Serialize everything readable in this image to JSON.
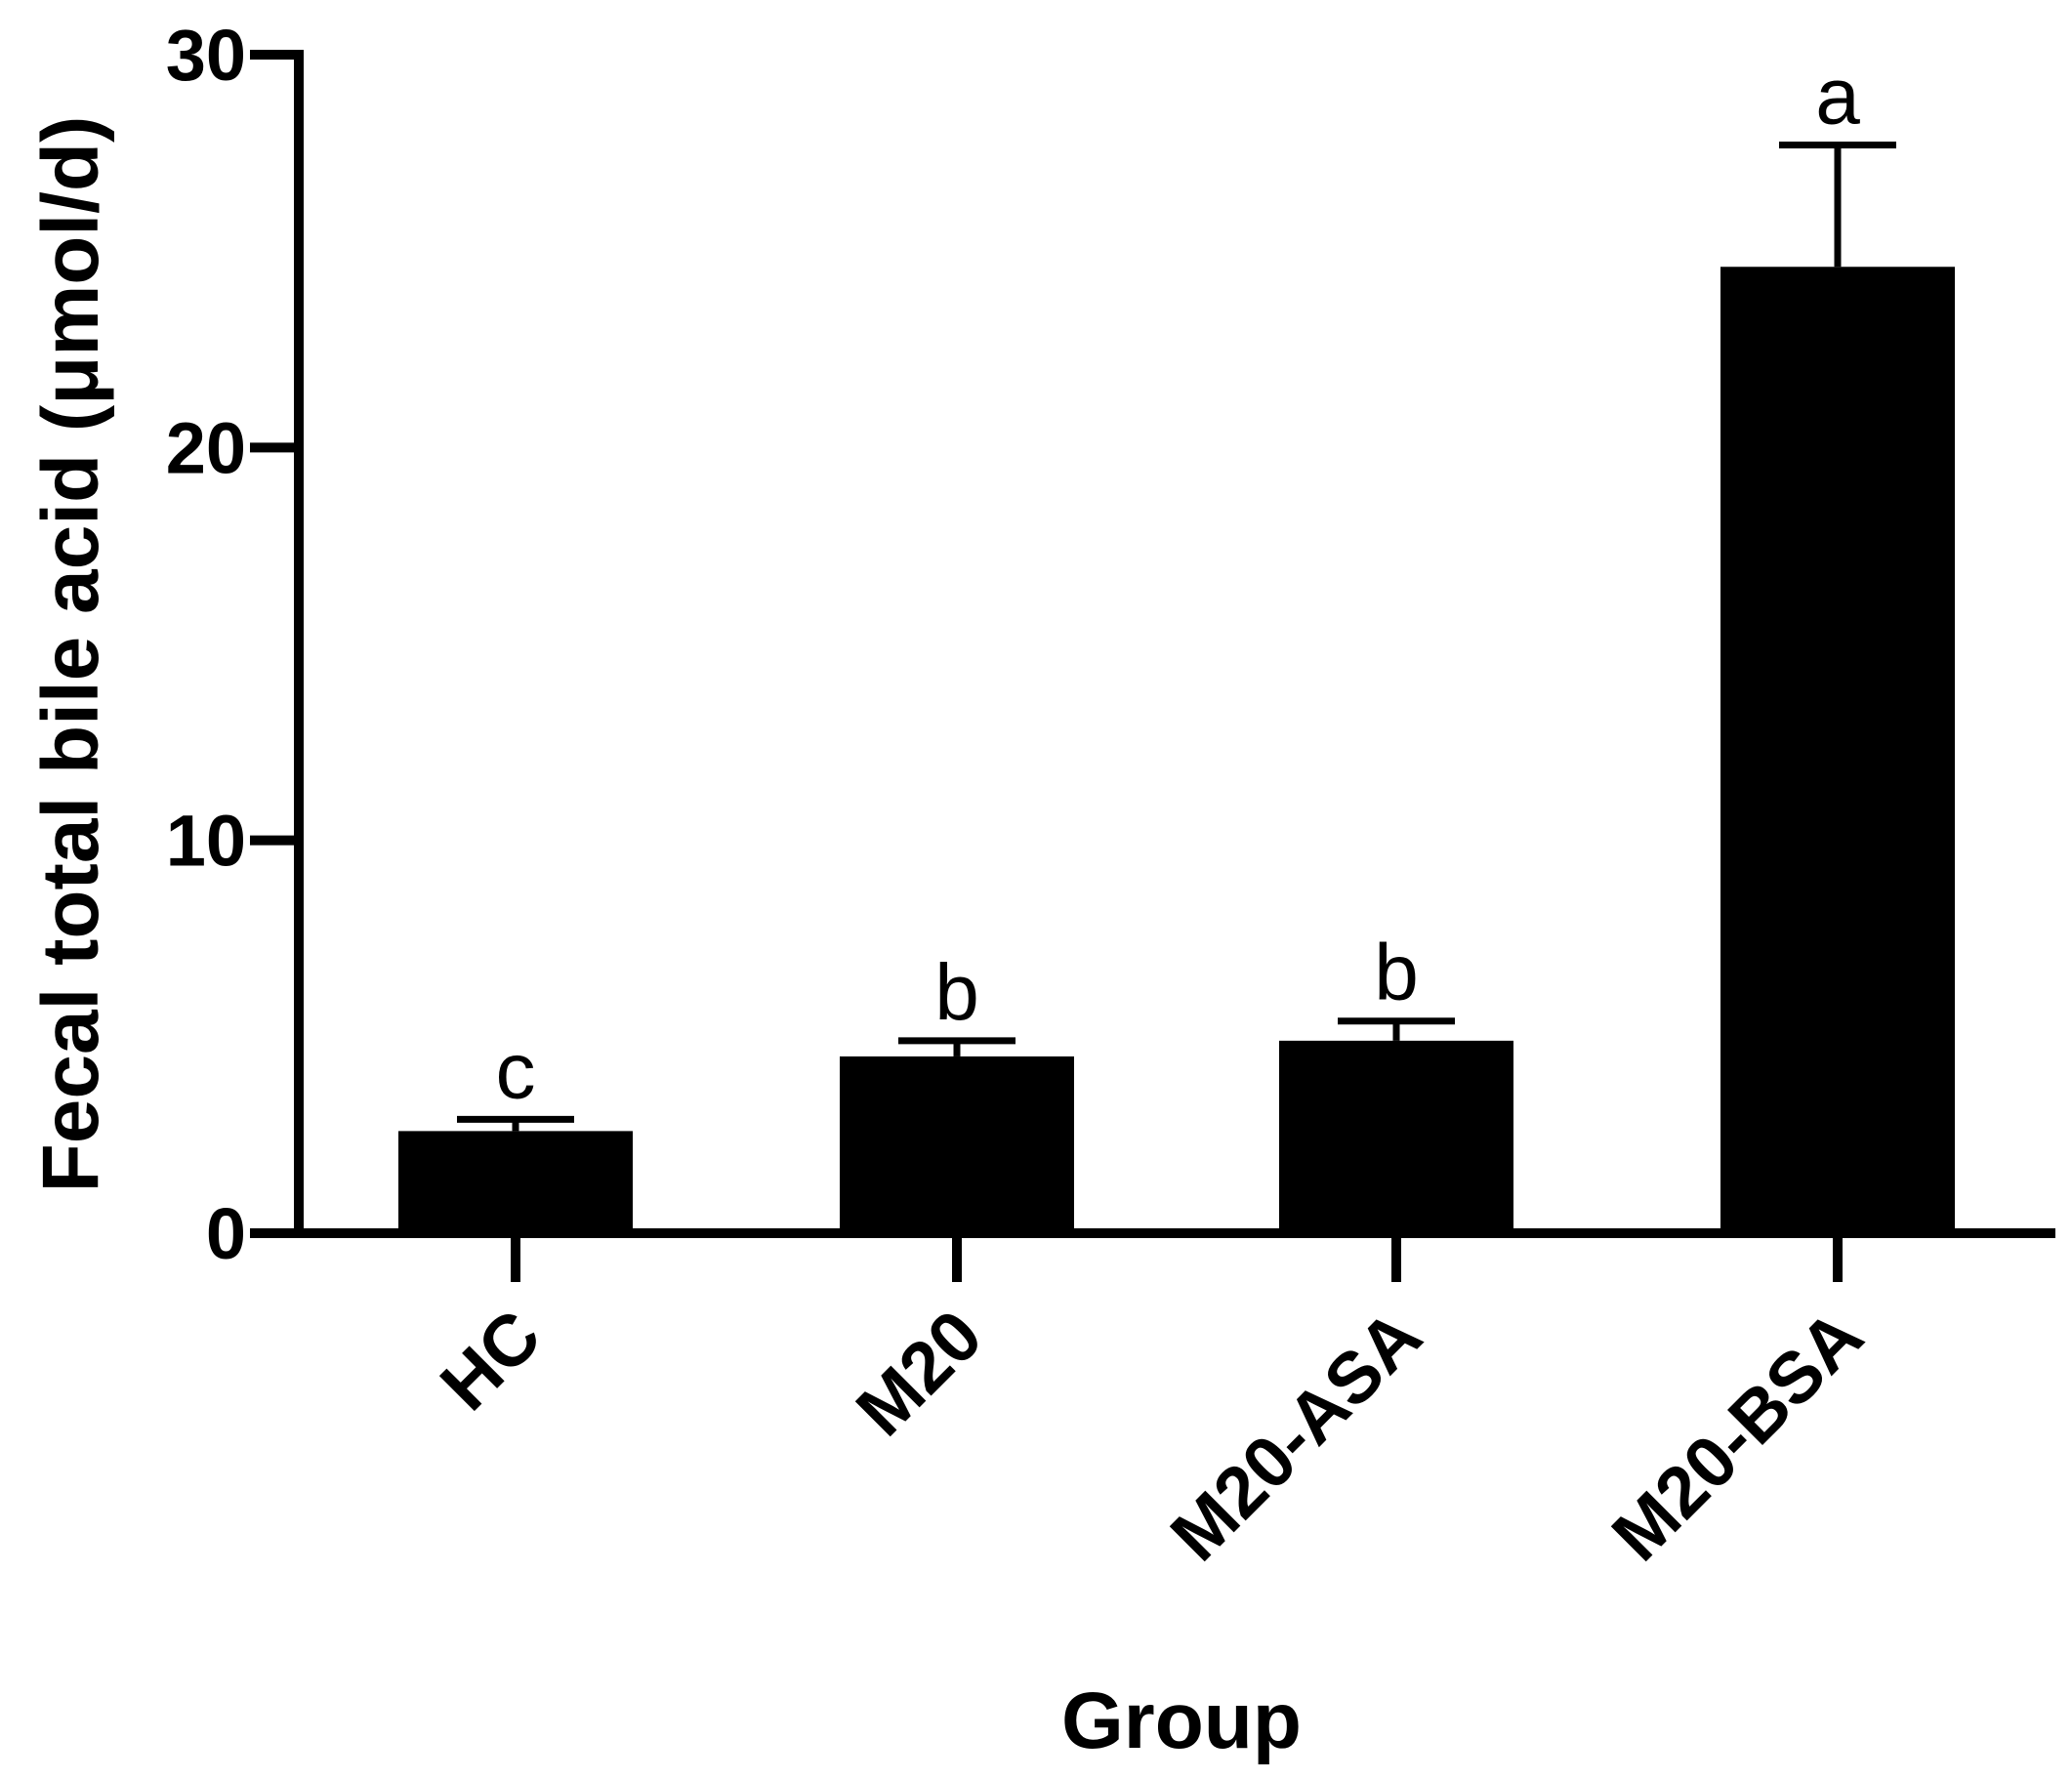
{
  "chart_data": {
    "type": "bar",
    "title": "",
    "xlabel": "Group",
    "ylabel": "Fecal total bile acid (μmol/d)",
    "categories": [
      "HC",
      "M20",
      "M20-ASA",
      "M20-BSA"
    ],
    "values": [
      2.6,
      4.5,
      4.9,
      24.6
    ],
    "errors": [
      0.3,
      0.4,
      0.5,
      3.1
    ],
    "significance": [
      "c",
      "b",
      "b",
      "a"
    ],
    "ylim": [
      0,
      30
    ],
    "yticks": [
      "0",
      "10",
      "20",
      "30"
    ],
    "bar_color": "#000000",
    "grid": false,
    "legend": false
  }
}
